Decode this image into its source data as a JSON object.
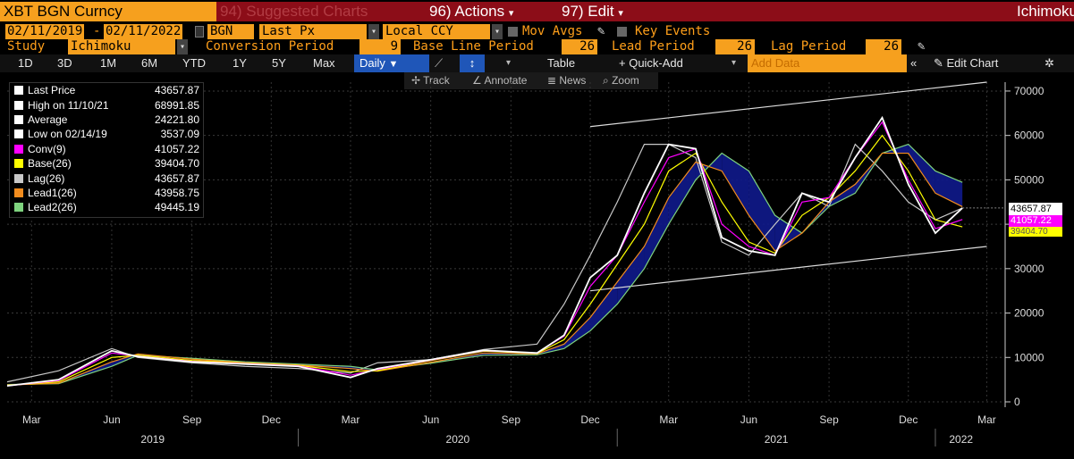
{
  "header": {
    "ticker": "XBT BGN Curncy",
    "suggested": "94) Suggested Charts",
    "actions": "96) Actions",
    "edit": "97) Edit",
    "study_title": "Ichimoku"
  },
  "settings": {
    "date_from": "02/11/2019",
    "date_sep": "-",
    "date_to": "02/11/2022",
    "source": "BGN",
    "price_field": "Last Px",
    "currency": "Local CCY",
    "mov_avgs": "Mov Avgs",
    "key_events": "Key Events",
    "study_label": "Study",
    "study_value": "Ichimoku",
    "conversion_label": "Conversion Period",
    "conversion_value": "9",
    "baseline_label": "Base Line Period",
    "baseline_value": "26",
    "lead_label": "Lead Period",
    "lead_value": "26",
    "lag_label": "Lag Period",
    "lag_value": "26"
  },
  "toolbar": {
    "ranges": [
      "1D",
      "3D",
      "1M",
      "6M",
      "YTD",
      "1Y",
      "5Y",
      "Max"
    ],
    "frequency": "Daily",
    "table": "Table",
    "quick_add": "+ Quick-Add",
    "add_data_placeholder": "Add Data",
    "edit_chart": "Edit Chart"
  },
  "chart_tools": {
    "track": "Track",
    "annotate": "Annotate",
    "news": "News",
    "zoom": "Zoom"
  },
  "legend": [
    {
      "name": "Last Price",
      "value": "43657.87",
      "color": "#ffffff"
    },
    {
      "name": "High on 11/10/21",
      "value": "68991.85",
      "color": "#ffffff"
    },
    {
      "name": "Average",
      "value": "24221.80",
      "color": "#ffffff"
    },
    {
      "name": "Low on 02/14/19",
      "value": "3537.09",
      "color": "#ffffff"
    },
    {
      "name": "Conv(9)",
      "value": "41057.22",
      "color": "#ff00ff"
    },
    {
      "name": "Base(26)",
      "value": "39404.70",
      "color": "#ffff00"
    },
    {
      "name": "Lag(26)",
      "value": "43657.87",
      "color": "#c8c8c8"
    },
    {
      "name": "Lead1(26)",
      "value": "43958.75",
      "color": "#f28c1e"
    },
    {
      "name": "Lead2(26)",
      "value": "49445.19",
      "color": "#7ed37e"
    }
  ],
  "value_tags": {
    "last": "43657.87",
    "conv": "41057.22",
    "base": "39404.70"
  },
  "chart_data": {
    "type": "line",
    "ylim": [
      0,
      72000
    ],
    "yticks": [
      0,
      10000,
      20000,
      30000,
      40000,
      50000,
      60000,
      70000
    ],
    "ytick_labels": [
      "0",
      "10000",
      "20000",
      "30000",
      "40000",
      "50000",
      "60000",
      "70000"
    ],
    "month_ticks": [
      "Mar",
      "Jun",
      "Sep",
      "Dec",
      "Mar",
      "Jun",
      "Sep",
      "Dec",
      "Mar",
      "Jun",
      "Sep",
      "Dec",
      "Mar"
    ],
    "month_tick_dates": [
      "2019-03",
      "2019-06",
      "2019-09",
      "2019-12",
      "2020-03",
      "2020-06",
      "2020-09",
      "2020-12",
      "2021-03",
      "2021-06",
      "2021-09",
      "2021-12",
      "2022-03"
    ],
    "year_labels": [
      "2019",
      "2020",
      "2021",
      "2022"
    ],
    "x_dates": [
      "2019-02",
      "2019-04",
      "2019-06",
      "2019-07",
      "2019-09",
      "2019-11",
      "2020-01",
      "2020-03",
      "2020-04",
      "2020-06",
      "2020-08",
      "2020-10",
      "2020-11",
      "2020-12",
      "2021-01",
      "2021-02",
      "2021-03",
      "2021-04",
      "2021-05",
      "2021-06",
      "2021-07",
      "2021-08",
      "2021-09",
      "2021-10",
      "2021-11",
      "2021-12",
      "2022-01",
      "2022-02"
    ],
    "series": [
      {
        "name": "Last Price",
        "color": "#ffffff",
        "values": [
          3600,
          5000,
          11500,
          10200,
          9000,
          8500,
          8000,
          5500,
          7500,
          9500,
          11600,
          11000,
          15000,
          28000,
          33000,
          47000,
          58000,
          57000,
          37000,
          34000,
          33000,
          47000,
          45000,
          55000,
          64000,
          49000,
          38000,
          43658
        ]
      },
      {
        "name": "Conv(9)",
        "color": "#ff00ff",
        "values": [
          3600,
          4800,
          11000,
          10300,
          9100,
          8600,
          8100,
          6000,
          7300,
          9400,
          11500,
          11000,
          14800,
          26000,
          33000,
          45000,
          55000,
          57000,
          40000,
          35000,
          33000,
          45000,
          46000,
          55000,
          63000,
          50000,
          39000,
          41057
        ]
      },
      {
        "name": "Base(26)",
        "color": "#ffff00",
        "values": [
          3700,
          4500,
          10000,
          10500,
          9300,
          8700,
          8200,
          6800,
          7000,
          9300,
          11400,
          10900,
          14000,
          22000,
          31000,
          40000,
          52000,
          56000,
          45000,
          36000,
          33500,
          42000,
          46000,
          52000,
          60000,
          52000,
          41000,
          39405
        ]
      },
      {
        "name": "Lead1(26)",
        "color": "#f28c1e",
        "values": [
          3800,
          4200,
          9000,
          10800,
          9600,
          8800,
          8300,
          7500,
          6900,
          8900,
          11000,
          10800,
          13000,
          19000,
          27000,
          35000,
          46000,
          54000,
          52000,
          42000,
          34000,
          38000,
          45000,
          49000,
          56000,
          56000,
          47000,
          43959
        ]
      },
      {
        "name": "Lead2(26)",
        "color": "#7ed37e",
        "values": [
          3900,
          4100,
          8000,
          10500,
          9800,
          9000,
          8500,
          8000,
          7200,
          8700,
          10500,
          10600,
          12000,
          16000,
          22000,
          30000,
          40000,
          50000,
          56000,
          52000,
          42000,
          38000,
          44000,
          47000,
          56000,
          58000,
          52000,
          49445
        ]
      },
      {
        "name": "Lag(26)",
        "color": "#c8c8c8",
        "values": [
          4500,
          7000,
          12000,
          10000,
          8800,
          8000,
          7500,
          6500,
          8800,
          9500,
          11800,
          13000,
          22000,
          33000,
          45000,
          58000,
          58000,
          55000,
          36000,
          33000,
          40000,
          47000,
          44000,
          58000,
          52000,
          45000,
          41000,
          43658
        ]
      }
    ],
    "channel": {
      "upper": [
        [
          "2020-12",
          62000
        ],
        [
          "2022-03",
          72000
        ]
      ],
      "lower": [
        [
          "2020-12",
          25000
        ],
        [
          "2022-03",
          35000
        ]
      ]
    }
  }
}
